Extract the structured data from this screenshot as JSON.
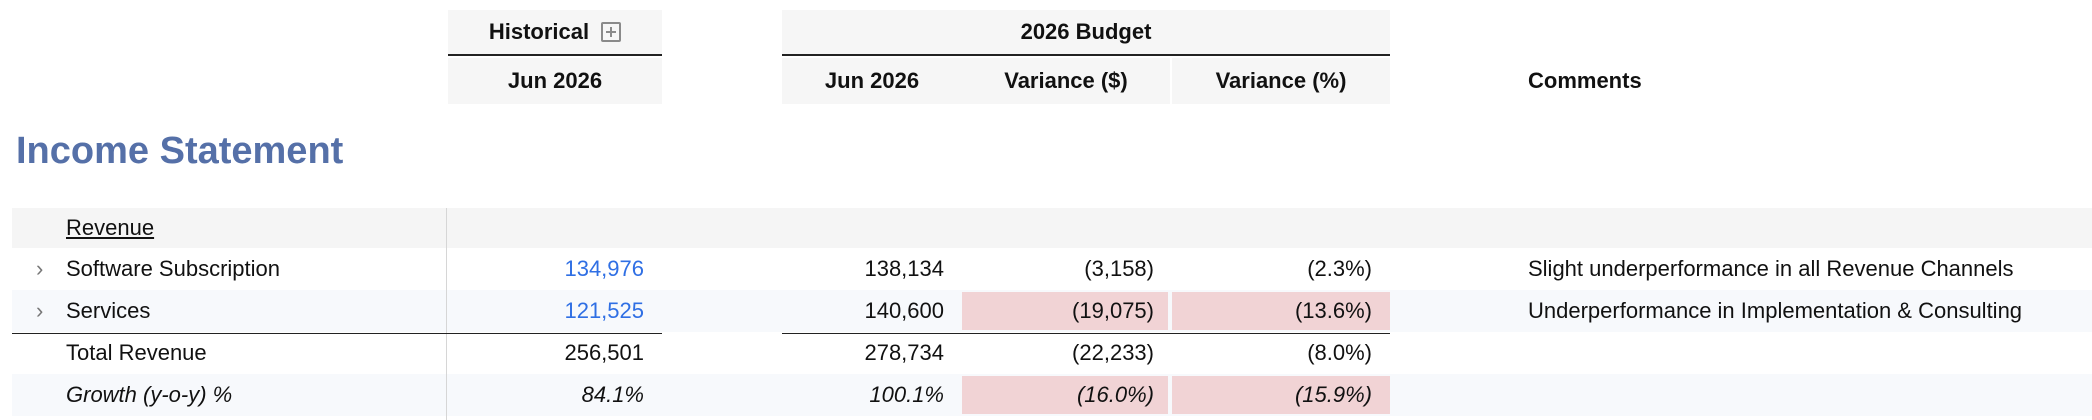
{
  "header": {
    "historical": {
      "label": "Historical",
      "sub": "Jun 2026"
    },
    "budget": {
      "label": "2026 Budget",
      "cols": [
        "Jun 2026",
        "Variance ($)",
        "Variance (%)"
      ]
    },
    "comments": "Comments"
  },
  "title": "Income Statement",
  "section_label": "Revenue",
  "rows": [
    {
      "label": "Software Subscription",
      "historical": "134,976",
      "budget": "138,134",
      "var_abs": "(3,158)",
      "var_pct": "(2.3%)",
      "comment": "Slight underperformance in all Revenue Channels"
    },
    {
      "label": "Services",
      "historical": "121,525",
      "budget": "140,600",
      "var_abs": "(19,075)",
      "var_pct": "(13.6%)",
      "comment": "Underperformance in Implementation & Consulting"
    },
    {
      "label": "Total Revenue",
      "historical": "256,501",
      "budget": "278,734",
      "var_abs": "(22,233)",
      "var_pct": "(8.0%)",
      "comment": ""
    },
    {
      "label": "Growth (y-o-y) %",
      "historical": "84.1%",
      "budget": "100.1%",
      "var_abs": "(16.0%)",
      "var_pct": "(15.9%)",
      "comment": ""
    }
  ],
  "colors": {
    "title": "#5570a8",
    "link_value": "#2f6fe4",
    "negative_highlight": "#f1d3d5"
  }
}
